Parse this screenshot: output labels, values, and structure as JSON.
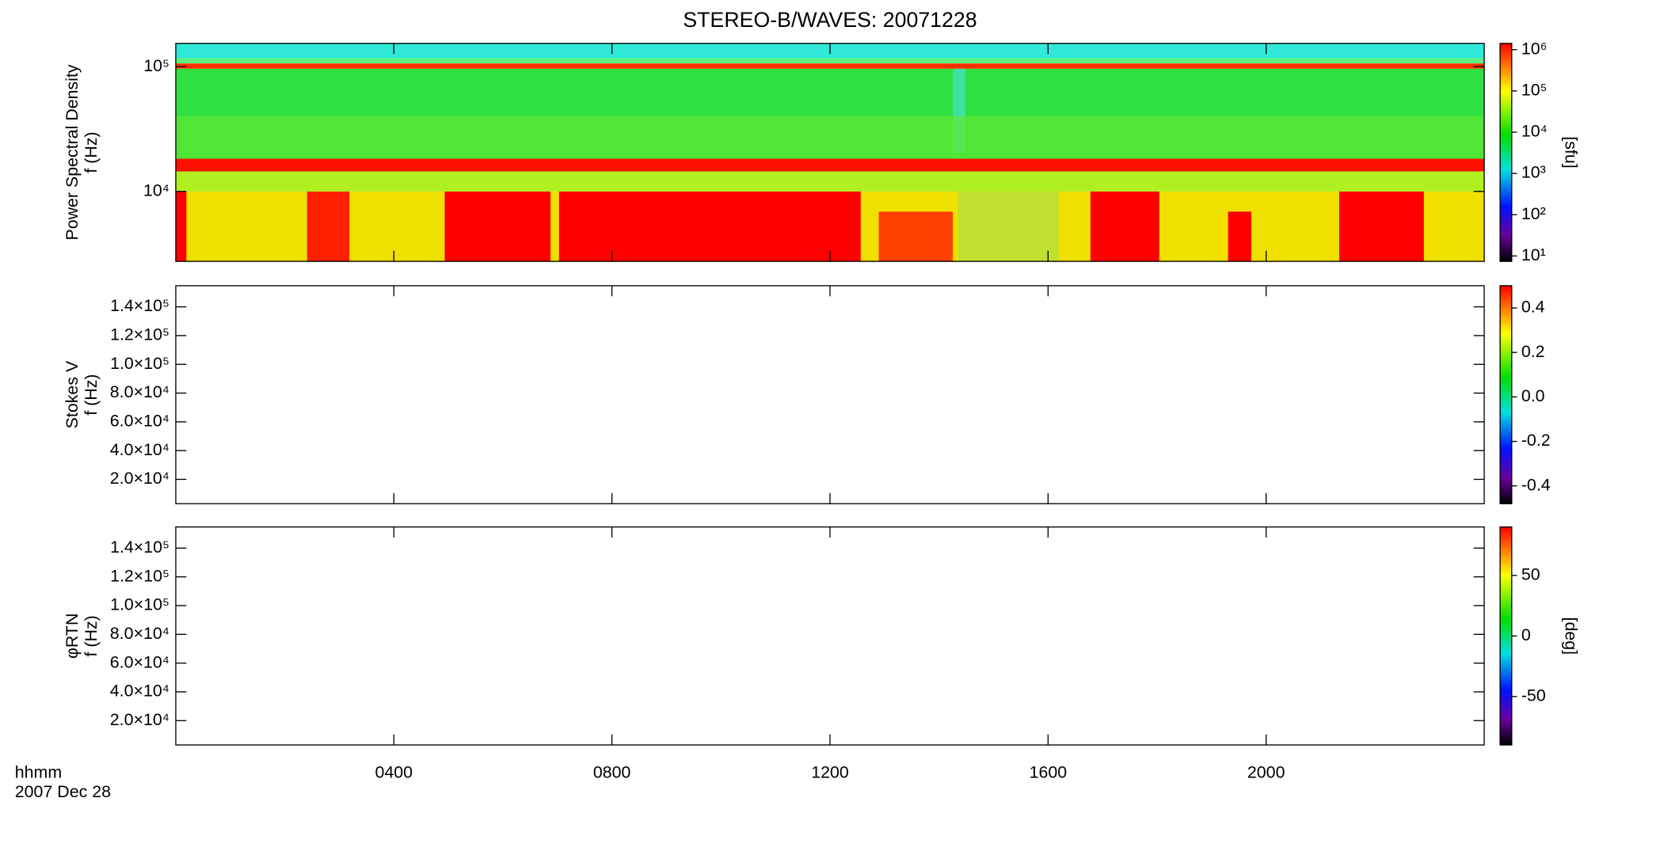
{
  "chart_data": [
    {
      "type": "spectrogram",
      "title": "STEREO-B/WAVES: 20071228",
      "ylabel": [
        "Power Spectral Density",
        "f (Hz)"
      ],
      "log_y": true,
      "ylim": [
        2750,
        153500
      ],
      "yticks": [
        {
          "value": 10000,
          "label": "10⁴"
        },
        {
          "value": 100000,
          "label": "10⁵"
        }
      ],
      "xlim": [
        0,
        24
      ],
      "colorbar": {
        "log": true,
        "lim": [
          7.4,
          1420000
        ],
        "label": "[sfu]",
        "ticks": [
          {
            "value": 10,
            "label": "10¹"
          },
          {
            "value": 100,
            "label": "10²"
          },
          {
            "value": 1000,
            "label": "10³"
          },
          {
            "value": 10000,
            "label": "10⁴"
          },
          {
            "value": 100000,
            "label": "10⁵"
          },
          {
            "value": 1000000,
            "label": "10⁶"
          }
        ]
      }
    },
    {
      "type": "spectrogram",
      "ylabel": [
        "Stokes V",
        "f (Hz)"
      ],
      "log_y": false,
      "ylim": [
        3070,
        154700
      ],
      "yticks": [
        {
          "value": 20000,
          "label": "2.0×10⁴"
        },
        {
          "value": 40000,
          "label": "4.0×10⁴"
        },
        {
          "value": 60000,
          "label": "6.0×10⁴"
        },
        {
          "value": 80000,
          "label": "8.0×10⁴"
        },
        {
          "value": 100000,
          "label": "1.0×10⁵"
        },
        {
          "value": 120000,
          "label": "1.2×10⁵"
        },
        {
          "value": 140000,
          "label": "1.4×10⁵"
        }
      ],
      "xlim": [
        0,
        24
      ],
      "colorbar": {
        "log": false,
        "lim": [
          -0.48,
          0.5
        ],
        "ticks": [
          {
            "value": -0.4,
            "label": "-0.4"
          },
          {
            "value": -0.2,
            "label": "-0.2"
          },
          {
            "value": 0,
            "label": "0.0"
          },
          0.2,
          0.4
        ]
      }
    },
    {
      "type": "spectrogram",
      "ylabel": [
        "φRTN",
        "f (Hz)"
      ],
      "log_y": false,
      "ylim": [
        3070,
        154700
      ],
      "yticks": [
        {
          "value": 20000,
          "label": "2.0×10⁴"
        },
        {
          "value": 40000,
          "label": "4.0×10⁴"
        },
        {
          "value": 60000,
          "label": "6.0×10⁴"
        },
        {
          "value": 80000,
          "label": "8.0×10⁴"
        },
        {
          "value": 100000,
          "label": "1.0×10⁵"
        },
        {
          "value": 120000,
          "label": "1.2×10⁵"
        },
        {
          "value": 140000,
          "label": "1.4×10⁵"
        }
      ],
      "xlim": [
        0,
        24
      ],
      "xticks": [
        {
          "value": 4,
          "label": "0400"
        },
        {
          "value": 8,
          "label": "0800"
        },
        {
          "value": 12,
          "label": "1200"
        },
        {
          "value": 16,
          "label": "1600"
        },
        {
          "value": 20,
          "label": "2000"
        }
      ],
      "xlabel": [
        "hhmm",
        "2007 Dec 28"
      ],
      "colorbar": {
        "log": false,
        "lim": [
          -90,
          90
        ],
        "label": "[deg]",
        "ticks": [
          -50,
          0,
          50
        ]
      }
    }
  ]
}
